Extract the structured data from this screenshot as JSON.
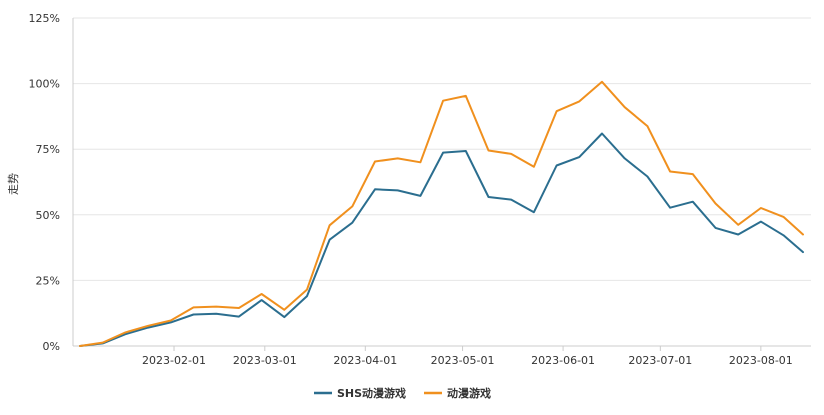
{
  "chart_data": {
    "type": "line",
    "title": "",
    "xlabel": "",
    "ylabel": "走势",
    "ylim": [
      0,
      125
    ],
    "yticks": [
      "0%",
      "25%",
      "50%",
      "75%",
      "100%",
      "125%"
    ],
    "xlim": [
      "2023-01-03",
      "2023-08-14"
    ],
    "xticks": [
      "2023-02-01",
      "2023-03-01",
      "2023-04-01",
      "2023-05-01",
      "2023-06-01",
      "2023-07-01",
      "2023-08-01"
    ],
    "grid": "horizontal",
    "legend": "bottom-center",
    "x": [
      "2023-01-03",
      "2023-01-10",
      "2023-01-17",
      "2023-01-24",
      "2023-01-31",
      "2023-02-07",
      "2023-02-14",
      "2023-02-21",
      "2023-02-28",
      "2023-03-07",
      "2023-03-14",
      "2023-03-21",
      "2023-03-28",
      "2023-04-04",
      "2023-04-11",
      "2023-04-18",
      "2023-04-25",
      "2023-05-02",
      "2023-05-09",
      "2023-05-16",
      "2023-05-23",
      "2023-05-30",
      "2023-06-06",
      "2023-06-13",
      "2023-06-20",
      "2023-06-27",
      "2023-07-04",
      "2023-07-11",
      "2023-07-18",
      "2023-07-25",
      "2023-08-01",
      "2023-08-08",
      "2023-08-14"
    ],
    "series": [
      {
        "name": "SHS动漫游戏",
        "color": "#2b6e8f",
        "values": [
          0,
          1,
          4.5,
          7,
          9,
          12,
          12.3,
          11.2,
          17.5,
          11,
          19,
          40.5,
          47,
          59.7,
          59.3,
          57.2,
          73.7,
          74.3,
          56.8,
          55.8,
          51,
          68.8,
          72,
          81,
          71.5,
          64.6,
          52.7,
          55,
          45,
          42.5,
          47.4,
          42.2,
          35.8
        ]
      },
      {
        "name": "动漫游戏",
        "color": "#f0901e",
        "values": [
          0,
          1.3,
          5.2,
          7.7,
          9.7,
          14.7,
          15,
          14.5,
          19.8,
          13.8,
          21.5,
          46,
          53.2,
          70.3,
          71.5,
          70,
          93.5,
          95.3,
          74.5,
          73.2,
          68.3,
          89.5,
          93.2,
          100.7,
          91,
          83.8,
          66.5,
          65.5,
          54.3,
          46.2,
          52.6,
          49.2,
          42.5
        ]
      }
    ]
  },
  "legend": {
    "items": [
      {
        "label": "SHS动漫游戏",
        "color": "#2b6e8f"
      },
      {
        "label": "动漫游戏",
        "color": "#f0901e"
      }
    ]
  }
}
